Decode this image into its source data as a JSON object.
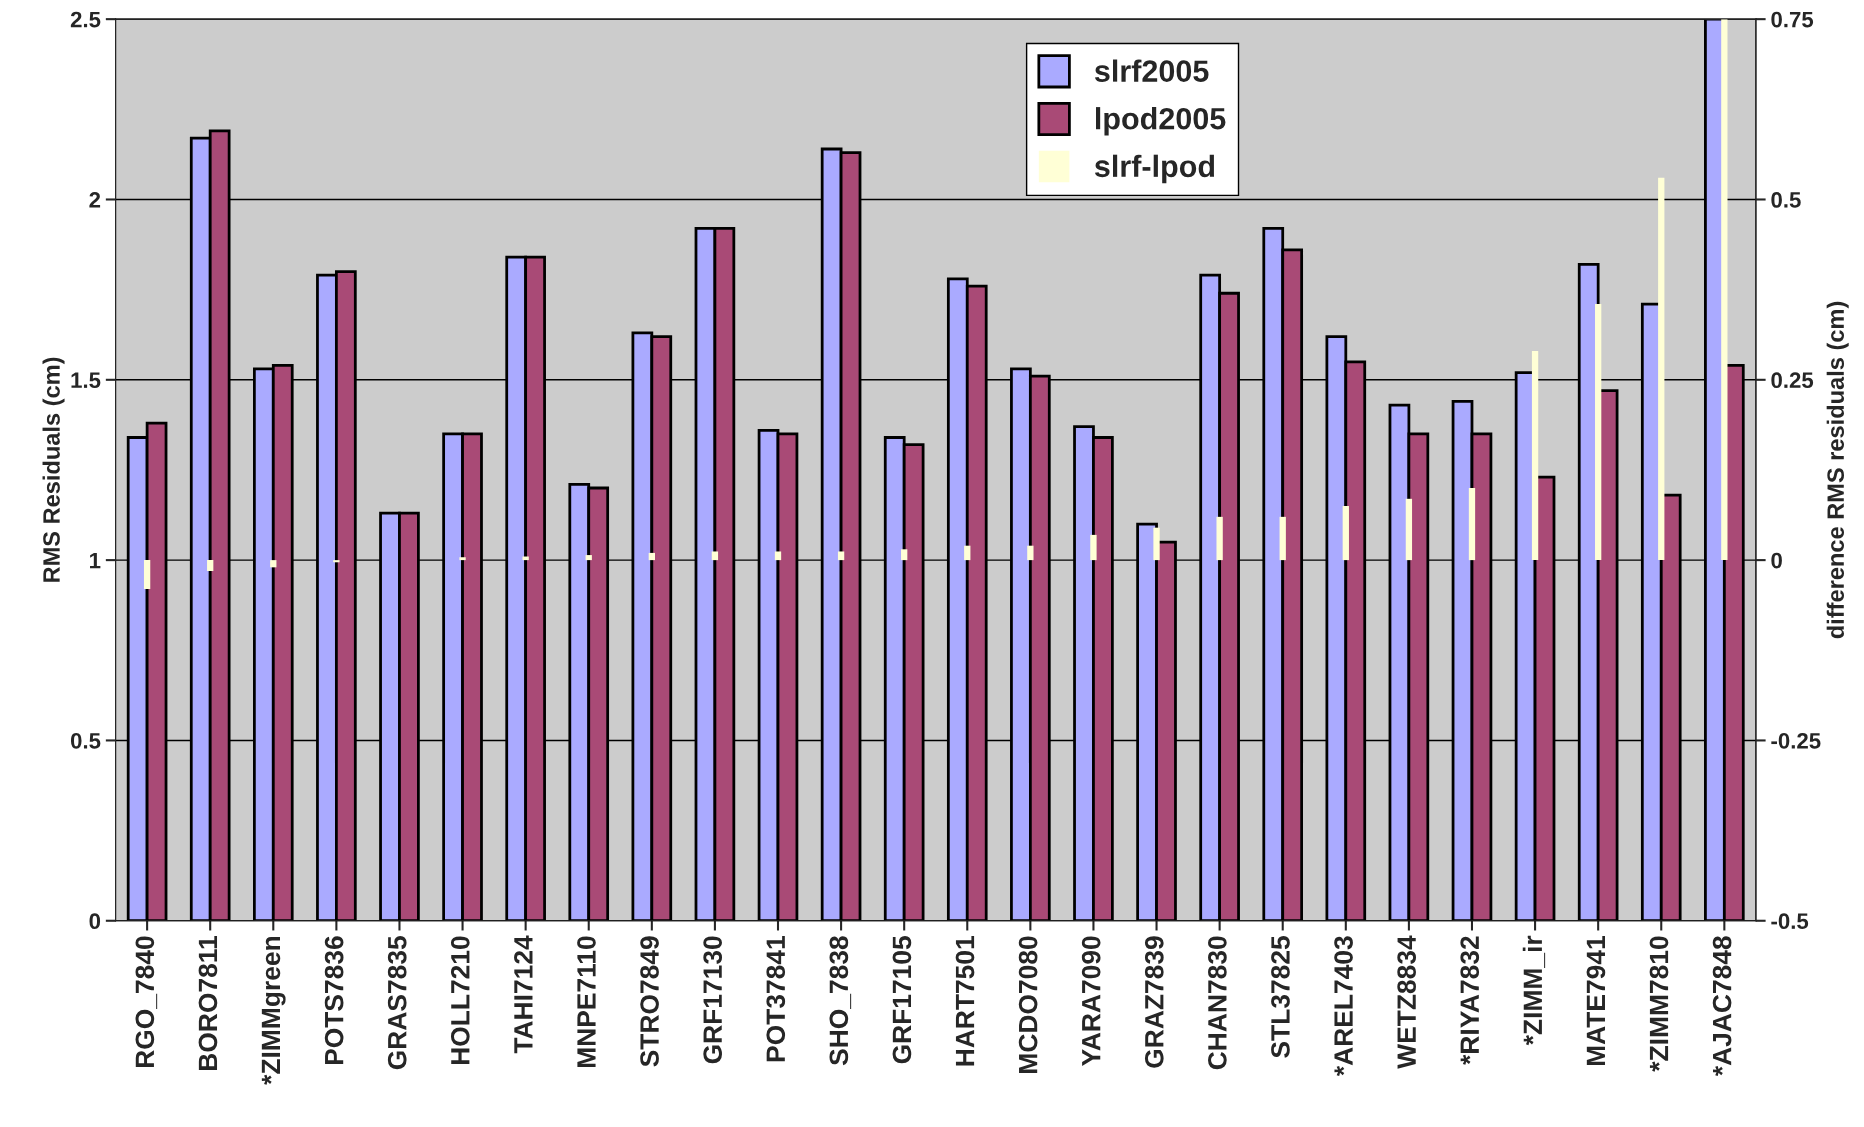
{
  "chart_data": {
    "type": "bar",
    "ylabel": "RMS Residuals (cm)",
    "y2label": "difference RMS residuals (cm)",
    "categories": [
      "RGO_7840",
      "BORO7811",
      "*ZIMMgreen",
      "POTS7836",
      "GRAS7835",
      "HOLL7210",
      "TAHI7124",
      "MNPE7110",
      "STRO7849",
      "GRF17130",
      "POT37841",
      "SHO_7838",
      "GRF17105",
      "HART7501",
      "MCDO7080",
      "YARA7090",
      "GRAZ7839",
      "CHAN7830",
      "STL37825",
      "*AREL7403",
      "WETZ8834",
      "*RIYA7832",
      "*ZIMM_ir",
      "MATE7941",
      "*ZIMM7810",
      "*AJAC7848"
    ],
    "series": [
      {
        "name": "slrf2005",
        "color": "#aaaaff",
        "values": [
          1.34,
          2.17,
          1.53,
          1.79,
          1.13,
          1.35,
          1.84,
          1.21,
          1.63,
          1.92,
          1.36,
          2.14,
          1.34,
          1.78,
          1.53,
          1.37,
          1.1,
          1.79,
          1.92,
          1.62,
          1.43,
          1.44,
          1.52,
          1.82,
          1.71,
          2.5
        ]
      },
      {
        "name": "lpod2005",
        "color": "#a94a76",
        "values": [
          1.38,
          2.19,
          1.54,
          1.8,
          1.13,
          1.35,
          1.84,
          1.2,
          1.62,
          1.92,
          1.35,
          2.13,
          1.32,
          1.76,
          1.51,
          1.34,
          1.05,
          1.74,
          1.86,
          1.55,
          1.35,
          1.35,
          1.23,
          1.47,
          1.18,
          1.54
        ]
      },
      {
        "name": "slrf-lpod",
        "color": "#ffffd6",
        "axis": "y2",
        "values": [
          -0.04,
          -0.015,
          -0.01,
          -0.003,
          0,
          0.004,
          0.005,
          0.007,
          0.01,
          0.012,
          0.012,
          0.012,
          0.015,
          0.02,
          0.02,
          0.035,
          0.045,
          0.06,
          0.06,
          0.075,
          0.085,
          0.1,
          0.29,
          0.355,
          0.53,
          0.75
        ]
      }
    ],
    "ylim": [
      0,
      2.5
    ],
    "yticks": [
      0,
      0.5,
      1,
      1.5,
      2,
      2.5
    ],
    "y2lim": [
      -0.5,
      0.75
    ],
    "y2ticks": [
      -0.5,
      -0.25,
      0,
      0.25,
      0.5,
      0.75
    ],
    "grid": "y",
    "legend": "top"
  }
}
